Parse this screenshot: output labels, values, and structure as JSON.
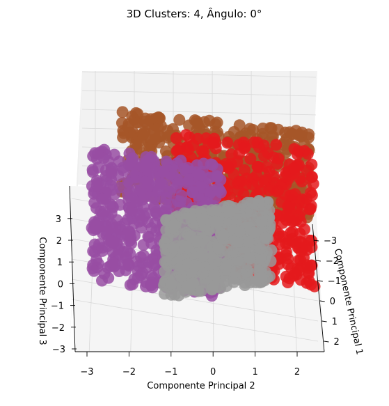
{
  "chart_data": {
    "type": "scatter",
    "projection": "3d",
    "title": "3D Clusters: 4, Ângulo: 0°",
    "xlabel": "Componente Principal 1",
    "ylabel": "Componente Principal 2",
    "zlabel": "Componente Principal 3",
    "x_ticks": [
      "−3",
      "−2",
      "−1",
      "0",
      "1",
      "2"
    ],
    "y_ticks": [
      "−3",
      "−2",
      "−1",
      "0",
      "1",
      "2"
    ],
    "z_ticks": [
      "−3",
      "−2",
      "−1",
      "0",
      "1",
      "2",
      "3"
    ],
    "xlim": [
      -3.5,
      2.5
    ],
    "ylim": [
      -3.3,
      2.6
    ],
    "zlim": [
      -3.2,
      3.6
    ],
    "grid": true,
    "colors": {
      "brown": "#a65628",
      "red": "#e41a1c",
      "purple": "#984ea3",
      "gray": "#999999",
      "pane": "#f2f2f2",
      "grid": "#d8d8d8"
    },
    "series": [
      {
        "color": "#a65628",
        "center": [
          -2.4,
          0.6,
          0.9
        ],
        "extent": [
          1.2,
          2.2,
          1.0
        ]
      },
      {
        "color": "#e41a1c",
        "center": [
          -1.6,
          0.6,
          -0.2
        ],
        "extent": [
          1.4,
          2.0,
          1.6
        ]
      },
      {
        "color": "#984ea3",
        "center": [
          -1.0,
          -1.8,
          1.2
        ],
        "extent": [
          1.6,
          1.4,
          1.8
        ]
      },
      {
        "color": "#999999",
        "center": [
          0.4,
          0.2,
          -1.4
        ],
        "extent": [
          1.0,
          1.6,
          1.2
        ]
      }
    ]
  }
}
